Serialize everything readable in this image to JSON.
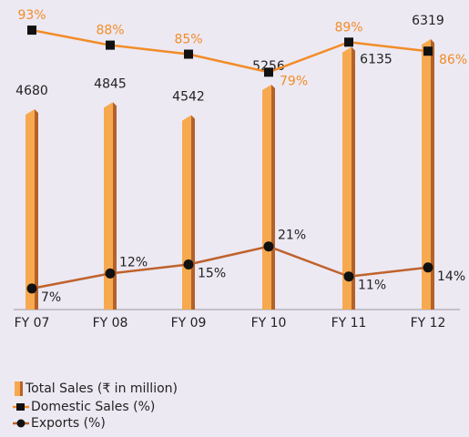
{
  "chart_data": {
    "type": "bar-line",
    "categories": [
      "FY 07",
      "FY 08",
      "FY 09",
      "FY 10",
      "FY 11",
      "FY 12"
    ],
    "series": [
      {
        "name": "Total Sales (₹ in million)",
        "type": "bar",
        "color": "#f7a94f",
        "values": [
          4680,
          4845,
          4542,
          5256,
          6135,
          6319
        ]
      },
      {
        "name": "Domestic Sales (%)",
        "type": "line",
        "color": "#f28c28",
        "values": [
          93,
          88,
          85,
          79,
          89,
          86
        ],
        "value_labels": [
          "93%",
          "88%",
          "85%",
          "79%",
          "89%",
          "86%"
        ]
      },
      {
        "name": "Exports (%)",
        "type": "line",
        "color": "#c0622c",
        "values": [
          7,
          12,
          15,
          21,
          11,
          14
        ],
        "value_labels": [
          "7%",
          "12%",
          "15%",
          "21%",
          "11%",
          "14%"
        ]
      }
    ]
  }
}
